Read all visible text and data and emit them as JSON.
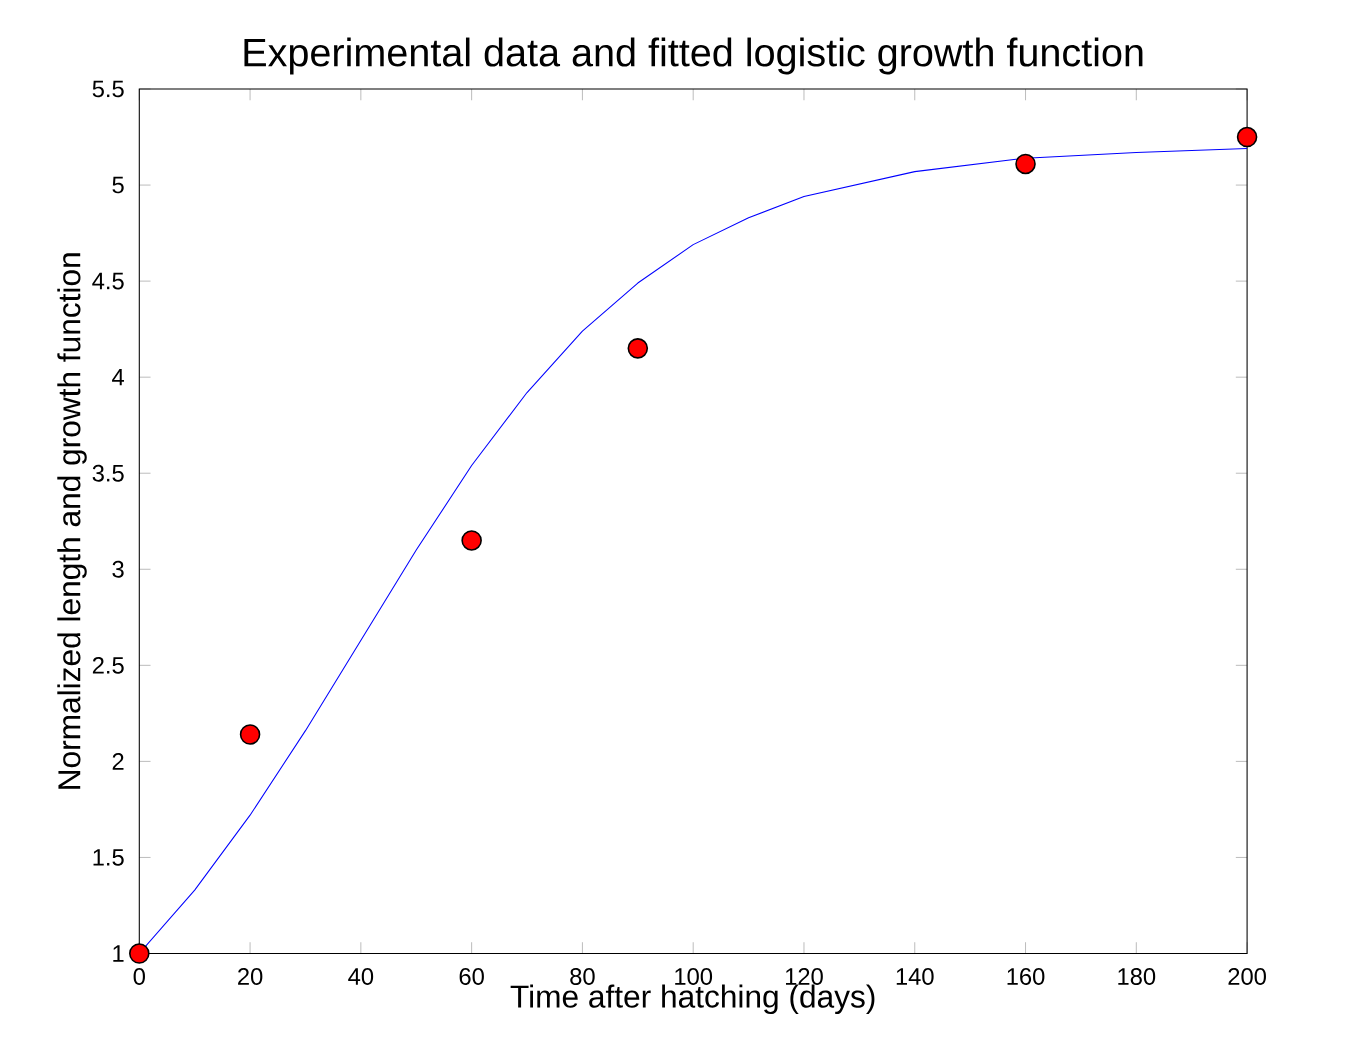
{
  "chart_data": {
    "type": "line",
    "title": "Experimental data and fitted logistic growth function",
    "xlabel": "Time after hatching (days)",
    "ylabel": "Normalized length and growth function",
    "xlim": [
      0,
      200
    ],
    "ylim": [
      1,
      5.5
    ],
    "xticks": [
      0,
      20,
      40,
      60,
      80,
      100,
      120,
      140,
      160,
      180,
      200
    ],
    "yticks": [
      1,
      1.5,
      2,
      2.5,
      3,
      3.5,
      4,
      4.5,
      5,
      5.5
    ],
    "grid": false,
    "series": [
      {
        "type": "line",
        "color": "#0000ff",
        "marker": "none",
        "line_style": "solid",
        "x": [
          0,
          10,
          20,
          30,
          40,
          50,
          60,
          70,
          80,
          90,
          100,
          110,
          120,
          140,
          160,
          180,
          200
        ],
        "values": [
          1.0,
          1.33,
          1.72,
          2.16,
          2.63,
          3.1,
          3.54,
          3.92,
          4.24,
          4.49,
          4.69,
          4.83,
          4.94,
          5.07,
          5.14,
          5.17,
          5.19
        ]
      },
      {
        "type": "scatter",
        "color": "#ff0000",
        "marker": "circle",
        "x": [
          0,
          20,
          60,
          90,
          160,
          200
        ],
        "values": [
          1.0,
          2.14,
          3.15,
          4.15,
          5.11,
          5.25
        ]
      }
    ]
  }
}
